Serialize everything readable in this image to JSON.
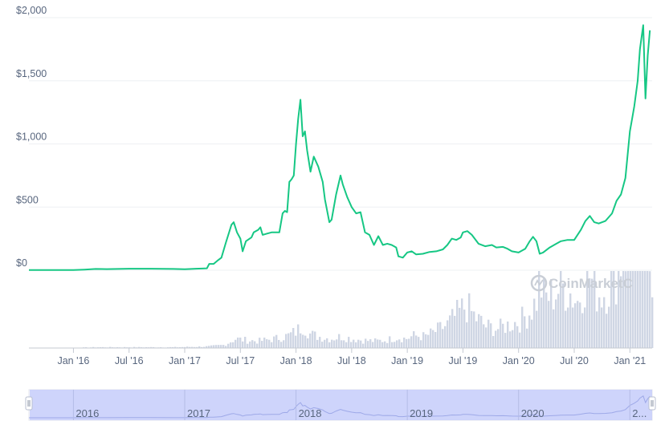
{
  "chart_data": {
    "type": "line",
    "title": "",
    "xlabel": "",
    "ylabel": "",
    "watermark": "CoinMarketC",
    "y_ticks": [
      "$2,000",
      "$1,500",
      "$1,000",
      "$500",
      "$0"
    ],
    "y_tick_values": [
      2000,
      1500,
      1000,
      500,
      0
    ],
    "ylim": [
      0,
      2000
    ],
    "x_ticks": [
      "Jan '16",
      "Jul '16",
      "Jan '17",
      "Jul '17",
      "Jan '18",
      "Jul '18",
      "Jan '19",
      "Jul '19",
      "Jan '20",
      "Jul '20",
      "Jan '21"
    ],
    "x_tick_values": [
      2016.0,
      2016.5,
      2017.0,
      2017.5,
      2018.0,
      2018.5,
      2019.0,
      2019.5,
      2020.0,
      2020.5,
      2021.0
    ],
    "xlim": [
      2015.6,
      2021.2
    ],
    "navigator_labels": [
      "2016",
      "2017",
      "2018",
      "2019",
      "2020",
      "2..."
    ],
    "navigator_label_values": [
      2016.0,
      2017.0,
      2018.0,
      2019.0,
      2020.0,
      2021.0
    ],
    "line_color": "#16c784",
    "volume_color": "#cfd6e4",
    "navigator_fill": "#c5cdfa",
    "series": [
      {
        "values": [
          [
            2015.6,
            1
          ],
          [
            2015.8,
            1
          ],
          [
            2016.0,
            1
          ],
          [
            2016.1,
            5
          ],
          [
            2016.2,
            10
          ],
          [
            2016.3,
            9
          ],
          [
            2016.5,
            12
          ],
          [
            2016.7,
            12
          ],
          [
            2016.9,
            10
          ],
          [
            2017.0,
            8
          ],
          [
            2017.1,
            12
          ],
          [
            2017.2,
            15
          ],
          [
            2017.22,
            50
          ],
          [
            2017.26,
            50
          ],
          [
            2017.3,
            80
          ],
          [
            2017.33,
            100
          ],
          [
            2017.37,
            220
          ],
          [
            2017.42,
            360
          ],
          [
            2017.44,
            380
          ],
          [
            2017.47,
            300
          ],
          [
            2017.5,
            250
          ],
          [
            2017.52,
            150
          ],
          [
            2017.55,
            230
          ],
          [
            2017.6,
            260
          ],
          [
            2017.62,
            300
          ],
          [
            2017.66,
            320
          ],
          [
            2017.68,
            340
          ],
          [
            2017.7,
            280
          ],
          [
            2017.74,
            290
          ],
          [
            2017.78,
            300
          ],
          [
            2017.82,
            300
          ],
          [
            2017.85,
            300
          ],
          [
            2017.88,
            450
          ],
          [
            2017.9,
            470
          ],
          [
            2017.92,
            460
          ],
          [
            2017.94,
            700
          ],
          [
            2017.96,
            720
          ],
          [
            2017.98,
            750
          ],
          [
            2018.0,
            1000
          ],
          [
            2018.02,
            1200
          ],
          [
            2018.04,
            1350
          ],
          [
            2018.06,
            1060
          ],
          [
            2018.08,
            1100
          ],
          [
            2018.1,
            950
          ],
          [
            2018.13,
            780
          ],
          [
            2018.16,
            900
          ],
          [
            2018.2,
            820
          ],
          [
            2018.24,
            700
          ],
          [
            2018.26,
            560
          ],
          [
            2018.3,
            380
          ],
          [
            2018.32,
            400
          ],
          [
            2018.36,
            600
          ],
          [
            2018.4,
            750
          ],
          [
            2018.42,
            680
          ],
          [
            2018.46,
            580
          ],
          [
            2018.5,
            500
          ],
          [
            2018.54,
            450
          ],
          [
            2018.58,
            460
          ],
          [
            2018.62,
            300
          ],
          [
            2018.66,
            280
          ],
          [
            2018.7,
            200
          ],
          [
            2018.74,
            270
          ],
          [
            2018.78,
            200
          ],
          [
            2018.82,
            210
          ],
          [
            2018.86,
            200
          ],
          [
            2018.9,
            180
          ],
          [
            2018.92,
            110
          ],
          [
            2018.96,
            100
          ],
          [
            2019.0,
            140
          ],
          [
            2019.04,
            150
          ],
          [
            2019.08,
            125
          ],
          [
            2019.14,
            130
          ],
          [
            2019.2,
            145
          ],
          [
            2019.26,
            150
          ],
          [
            2019.32,
            165
          ],
          [
            2019.36,
            200
          ],
          [
            2019.4,
            250
          ],
          [
            2019.44,
            240
          ],
          [
            2019.48,
            260
          ],
          [
            2019.5,
            300
          ],
          [
            2019.54,
            310
          ],
          [
            2019.58,
            280
          ],
          [
            2019.64,
            210
          ],
          [
            2019.7,
            190
          ],
          [
            2019.76,
            200
          ],
          [
            2019.8,
            180
          ],
          [
            2019.86,
            185
          ],
          [
            2019.9,
            170
          ],
          [
            2019.94,
            150
          ],
          [
            2020.0,
            140
          ],
          [
            2020.06,
            170
          ],
          [
            2020.1,
            230
          ],
          [
            2020.13,
            265
          ],
          [
            2020.16,
            230
          ],
          [
            2020.19,
            130
          ],
          [
            2020.22,
            140
          ],
          [
            2020.28,
            180
          ],
          [
            2020.34,
            210
          ],
          [
            2020.38,
            230
          ],
          [
            2020.44,
            240
          ],
          [
            2020.5,
            240
          ],
          [
            2020.56,
            320
          ],
          [
            2020.6,
            390
          ],
          [
            2020.64,
            430
          ],
          [
            2020.68,
            380
          ],
          [
            2020.72,
            370
          ],
          [
            2020.78,
            390
          ],
          [
            2020.84,
            450
          ],
          [
            2020.88,
            550
          ],
          [
            2020.92,
            600
          ],
          [
            2020.96,
            730
          ],
          [
            2021.0,
            1100
          ],
          [
            2021.02,
            1200
          ],
          [
            2021.04,
            1300
          ],
          [
            2021.07,
            1500
          ],
          [
            2021.09,
            1750
          ],
          [
            2021.12,
            1940
          ],
          [
            2021.14,
            1360
          ],
          [
            2021.16,
            1700
          ],
          [
            2021.18,
            1900
          ]
        ]
      }
    ],
    "volume": [
      [
        2015.9,
        0
      ],
      [
        2016.2,
        1
      ],
      [
        2016.6,
        1
      ],
      [
        2016.9,
        1
      ],
      [
        2017.2,
        2
      ],
      [
        2017.35,
        4
      ],
      [
        2017.45,
        12
      ],
      [
        2017.55,
        10
      ],
      [
        2017.65,
        9
      ],
      [
        2017.8,
        12
      ],
      [
        2017.92,
        16
      ],
      [
        2018.0,
        22
      ],
      [
        2018.05,
        30
      ],
      [
        2018.12,
        18
      ],
      [
        2018.22,
        14
      ],
      [
        2018.3,
        12
      ],
      [
        2018.4,
        15
      ],
      [
        2018.5,
        12
      ],
      [
        2018.6,
        10
      ],
      [
        2018.7,
        9
      ],
      [
        2018.8,
        10
      ],
      [
        2018.9,
        14
      ],
      [
        2018.98,
        12
      ],
      [
        2019.05,
        16
      ],
      [
        2019.15,
        15
      ],
      [
        2019.25,
        22
      ],
      [
        2019.35,
        30
      ],
      [
        2019.45,
        45
      ],
      [
        2019.52,
        55
      ],
      [
        2019.6,
        40
      ],
      [
        2019.7,
        28
      ],
      [
        2019.8,
        25
      ],
      [
        2019.9,
        30
      ],
      [
        2020.0,
        35
      ],
      [
        2020.08,
        45
      ],
      [
        2020.15,
        60
      ],
      [
        2020.18,
        90
      ],
      [
        2020.22,
        65
      ],
      [
        2020.3,
        70
      ],
      [
        2020.38,
        80
      ],
      [
        2020.44,
        75
      ],
      [
        2020.52,
        60
      ],
      [
        2020.58,
        85
      ],
      [
        2020.62,
        98
      ],
      [
        2020.68,
        75
      ],
      [
        2020.74,
        70
      ],
      [
        2020.8,
        80
      ],
      [
        2020.86,
        95
      ],
      [
        2020.92,
        120
      ],
      [
        2020.98,
        140
      ],
      [
        2021.02,
        160
      ],
      [
        2021.06,
        150
      ],
      [
        2021.1,
        140
      ],
      [
        2021.14,
        120
      ],
      [
        2021.18,
        105
      ]
    ]
  }
}
